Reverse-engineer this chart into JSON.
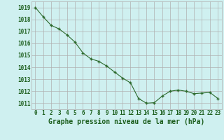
{
  "x": [
    0,
    1,
    2,
    3,
    4,
    5,
    6,
    7,
    8,
    9,
    10,
    11,
    12,
    13,
    14,
    15,
    16,
    17,
    18,
    19,
    20,
    21,
    22,
    23
  ],
  "y": [
    1019.0,
    1018.2,
    1017.5,
    1017.2,
    1016.7,
    1016.1,
    1015.2,
    1014.7,
    1014.5,
    1014.1,
    1013.6,
    1013.1,
    1012.7,
    1011.4,
    1011.0,
    1011.05,
    1011.6,
    1012.0,
    1012.1,
    1012.0,
    1011.8,
    1011.85,
    1011.9,
    1011.4
  ],
  "ylim": [
    1010.5,
    1019.5
  ],
  "yticks": [
    1011,
    1012,
    1013,
    1014,
    1015,
    1016,
    1017,
    1018,
    1019
  ],
  "xticks": [
    0,
    1,
    2,
    3,
    4,
    5,
    6,
    7,
    8,
    9,
    10,
    11,
    12,
    13,
    14,
    15,
    16,
    17,
    18,
    19,
    20,
    21,
    22,
    23
  ],
  "xlabel": "Graphe pression niveau de la mer (hPa)",
  "line_color": "#2d6a2d",
  "marker": "+",
  "bg_plot": "#cff0f0",
  "bg_fig": "#cff0f0",
  "grid_color": "#b0b0b0",
  "tick_label_color": "#1a5c1a",
  "xlabel_color": "#1a5c1a",
  "xlabel_fontsize": 7,
  "tick_fontsize": 5.5
}
